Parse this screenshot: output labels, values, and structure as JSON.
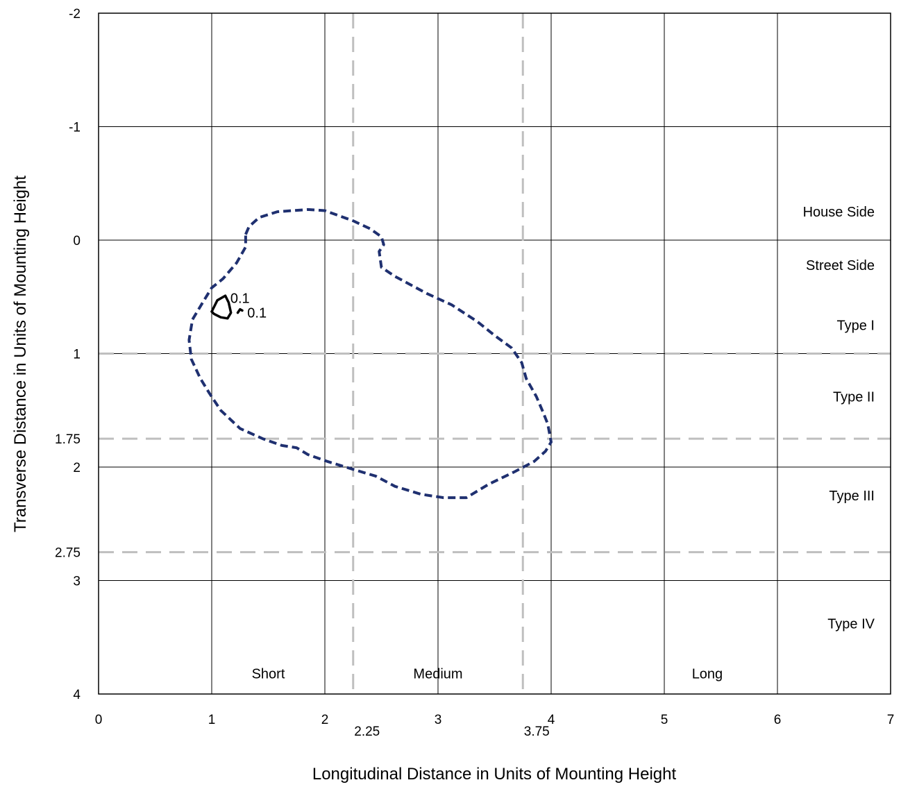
{
  "chart_data": {
    "type": "line",
    "title": "",
    "xlabel": "Longitudinal Distance in Units of Mounting Height",
    "ylabel": "Transverse Distance in Units of Mounting Height",
    "xlim": [
      0,
      7
    ],
    "ylim": [
      -2,
      4
    ],
    "y_inverted": true,
    "grid": true,
    "x_ticks": [
      "0",
      "1",
      "2",
      "3",
      "4",
      "5",
      "6",
      "7"
    ],
    "y_ticks": [
      "-2",
      "-1",
      "0",
      "1",
      "2",
      "3",
      "4"
    ],
    "x_reference_lines": [
      {
        "value": 2.25,
        "label": "2.25"
      },
      {
        "value": 3.75,
        "label": "3.75"
      }
    ],
    "y_reference_lines": [
      {
        "value": 1,
        "label": ""
      },
      {
        "value": 1.75,
        "label": "1.75"
      },
      {
        "value": 2.75,
        "label": "2.75"
      }
    ],
    "region_labels_right": [
      {
        "text": "House Side",
        "y": -0.25
      },
      {
        "text": "Street Side",
        "y": 0.22
      },
      {
        "text": "Type I",
        "y": 0.75
      },
      {
        "text": "Type II",
        "y": 1.38
      },
      {
        "text": "Type III",
        "y": 2.25
      },
      {
        "text": "Type IV",
        "y": 3.38
      }
    ],
    "region_labels_bottom": [
      {
        "text": "Short",
        "x": 1.5
      },
      {
        "text": "Medium",
        "x": 3.0
      },
      {
        "text": "Long",
        "x": 5.38
      }
    ],
    "series": [
      {
        "style": "dashed",
        "color": "#1f3070",
        "points": [
          [
            1.3,
            -0.05
          ],
          [
            1.33,
            -0.12
          ],
          [
            1.42,
            -0.2
          ],
          [
            1.58,
            -0.25
          ],
          [
            1.85,
            -0.27
          ],
          [
            2.0,
            -0.26
          ],
          [
            2.25,
            -0.17
          ],
          [
            2.4,
            -0.1
          ],
          [
            2.5,
            -0.03
          ],
          [
            2.52,
            0.04
          ],
          [
            2.48,
            0.1
          ],
          [
            2.5,
            0.24
          ],
          [
            2.62,
            0.32
          ],
          [
            2.9,
            0.47
          ],
          [
            3.12,
            0.57
          ],
          [
            3.35,
            0.72
          ],
          [
            3.5,
            0.84
          ],
          [
            3.65,
            0.95
          ],
          [
            3.74,
            1.08
          ],
          [
            3.78,
            1.22
          ],
          [
            3.87,
            1.38
          ],
          [
            3.93,
            1.52
          ],
          [
            3.97,
            1.62
          ],
          [
            4.0,
            1.78
          ],
          [
            3.95,
            1.86
          ],
          [
            3.85,
            1.95
          ],
          [
            3.68,
            2.04
          ],
          [
            3.45,
            2.15
          ],
          [
            3.25,
            2.27
          ],
          [
            3.05,
            2.27
          ],
          [
            2.85,
            2.24
          ],
          [
            2.62,
            2.17
          ],
          [
            2.45,
            2.08
          ],
          [
            2.25,
            2.02
          ],
          [
            2.02,
            1.95
          ],
          [
            1.85,
            1.89
          ],
          [
            1.75,
            1.83
          ],
          [
            1.62,
            1.81
          ],
          [
            1.45,
            1.75
          ],
          [
            1.25,
            1.66
          ],
          [
            1.08,
            1.5
          ],
          [
            0.98,
            1.35
          ],
          [
            0.9,
            1.22
          ],
          [
            0.82,
            1.05
          ],
          [
            0.8,
            0.88
          ],
          [
            0.83,
            0.7
          ],
          [
            0.92,
            0.55
          ],
          [
            1.0,
            0.42
          ],
          [
            1.1,
            0.34
          ],
          [
            1.22,
            0.2
          ],
          [
            1.3,
            0.06
          ],
          [
            1.3,
            -0.05
          ]
        ]
      },
      {
        "style": "solid",
        "color": "#000000",
        "points": [
          [
            1.0,
            0.63
          ],
          [
            1.05,
            0.53
          ],
          [
            1.12,
            0.49
          ],
          [
            1.15,
            0.55
          ],
          [
            1.17,
            0.64
          ],
          [
            1.14,
            0.69
          ],
          [
            1.08,
            0.68
          ],
          [
            1.02,
            0.65
          ],
          [
            1.0,
            0.63
          ]
        ]
      },
      {
        "style": "solid",
        "color": "#000000",
        "points": [
          [
            1.23,
            0.64
          ],
          [
            1.25,
            0.61
          ],
          [
            1.27,
            0.62
          ]
        ]
      }
    ],
    "annotations": [
      {
        "text": "0.1",
        "x": 1.25,
        "y": 0.51
      },
      {
        "text": "0.1",
        "x": 1.4,
        "y": 0.64
      }
    ]
  }
}
